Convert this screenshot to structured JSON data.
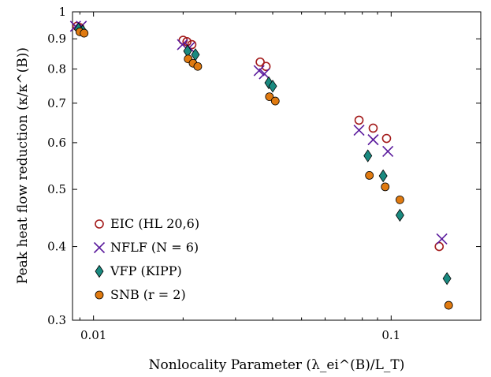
{
  "chart_data": {
    "type": "scatter",
    "xlabel": "Nonlocality Parameter (λ_ei^(B)/L_T)",
    "ylabel": "Peak heat flow reduction (κ/κ^(B))",
    "x_scale": "log",
    "y_scale": "log",
    "xlim": [
      0.0085,
      0.2
    ],
    "ylim": [
      0.3,
      1.0
    ],
    "x_ticks": [
      {
        "value": 0.01,
        "label": "0.01"
      },
      {
        "value": 0.1,
        "label": "0.1"
      }
    ],
    "y_ticks": [
      {
        "value": 0.3,
        "label": "0.3"
      },
      {
        "value": 0.4,
        "label": "0.4"
      },
      {
        "value": 0.5,
        "label": "0.5"
      },
      {
        "value": 0.6,
        "label": "0.6"
      },
      {
        "value": 0.7,
        "label": "0.7"
      },
      {
        "value": 0.8,
        "label": "0.8"
      },
      {
        "value": 0.9,
        "label": "0.9"
      },
      {
        "value": 1.0,
        "label": "1"
      }
    ],
    "grid": false,
    "legend_position": "bottom-left",
    "series": [
      {
        "name": "EIC (HL 20,6)",
        "marker": "open-circle",
        "color": "#a31a1a",
        "points": [
          {
            "x": 0.0088,
            "y": 0.945
          },
          {
            "x": 0.009,
            "y": 0.94
          },
          {
            "x": 0.02,
            "y": 0.895
          },
          {
            "x": 0.0206,
            "y": 0.89
          },
          {
            "x": 0.0214,
            "y": 0.88
          },
          {
            "x": 0.0363,
            "y": 0.822
          },
          {
            "x": 0.038,
            "y": 0.808
          },
          {
            "x": 0.078,
            "y": 0.655
          },
          {
            "x": 0.087,
            "y": 0.635
          },
          {
            "x": 0.0965,
            "y": 0.61
          },
          {
            "x": 0.145,
            "y": 0.4
          }
        ]
      },
      {
        "name": "NFLF (N = 6)",
        "marker": "cross",
        "color": "#5a1a9c",
        "points": [
          {
            "x": 0.0087,
            "y": 0.945
          },
          {
            "x": 0.0091,
            "y": 0.945
          },
          {
            "x": 0.0199,
            "y": 0.88
          },
          {
            "x": 0.021,
            "y": 0.87
          },
          {
            "x": 0.036,
            "y": 0.795
          },
          {
            "x": 0.0375,
            "y": 0.785
          },
          {
            "x": 0.078,
            "y": 0.63
          },
          {
            "x": 0.087,
            "y": 0.607
          },
          {
            "x": 0.0975,
            "y": 0.58
          },
          {
            "x": 0.148,
            "y": 0.412
          }
        ]
      },
      {
        "name": "VFP (KIPP)",
        "marker": "diamond",
        "color": "#1a8a80",
        "points": [
          {
            "x": 0.0089,
            "y": 0.935
          },
          {
            "x": 0.0092,
            "y": 0.928
          },
          {
            "x": 0.0207,
            "y": 0.858
          },
          {
            "x": 0.022,
            "y": 0.846
          },
          {
            "x": 0.0388,
            "y": 0.758
          },
          {
            "x": 0.04,
            "y": 0.748
          },
          {
            "x": 0.0835,
            "y": 0.57
          },
          {
            "x": 0.094,
            "y": 0.527
          },
          {
            "x": 0.107,
            "y": 0.452
          },
          {
            "x": 0.154,
            "y": 0.353
          }
        ]
      },
      {
        "name": "SNB (r = 2)",
        "marker": "filled-circle",
        "color": "#e07a10",
        "points": [
          {
            "x": 0.009,
            "y": 0.925
          },
          {
            "x": 0.0093,
            "y": 0.92
          },
          {
            "x": 0.0208,
            "y": 0.832
          },
          {
            "x": 0.0216,
            "y": 0.818
          },
          {
            "x": 0.0224,
            "y": 0.808
          },
          {
            "x": 0.039,
            "y": 0.718
          },
          {
            "x": 0.0408,
            "y": 0.706
          },
          {
            "x": 0.0845,
            "y": 0.528
          },
          {
            "x": 0.0955,
            "y": 0.505
          },
          {
            "x": 0.107,
            "y": 0.48
          },
          {
            "x": 0.156,
            "y": 0.318
          }
        ]
      }
    ]
  }
}
